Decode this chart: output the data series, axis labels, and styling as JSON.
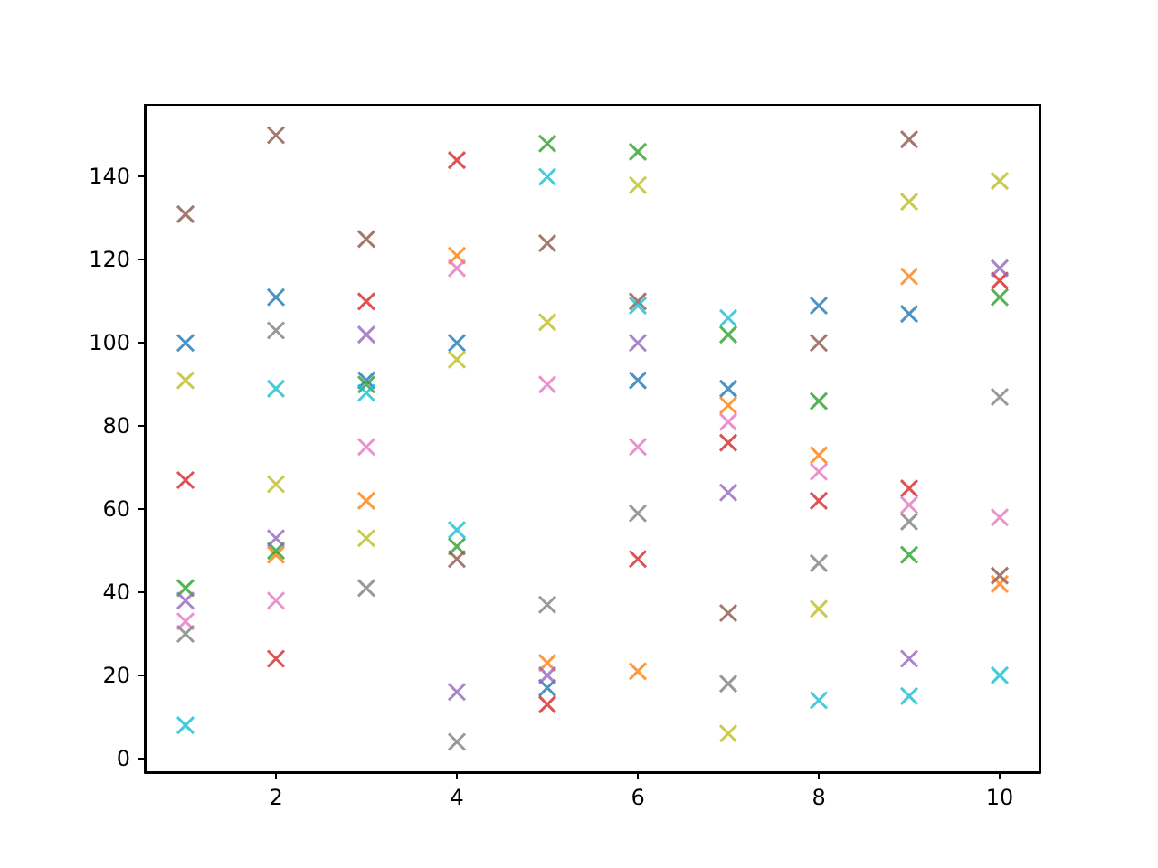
{
  "chart_data": {
    "type": "scatter",
    "x": [
      1,
      2,
      3,
      4,
      5,
      6,
      7,
      8,
      9,
      10
    ],
    "marker": "cross",
    "grid": false,
    "xlim": [
      0.55,
      10.45
    ],
    "xticks": [
      2,
      4,
      6,
      8,
      10
    ],
    "ylim": [
      -3.3,
      157.3
    ],
    "yticks": [
      0,
      20,
      40,
      60,
      80,
      100,
      120,
      140
    ],
    "series": [
      {
        "color": "#1f77b4",
        "values": [
          100,
          111,
          91,
          100,
          17,
          91,
          89,
          109,
          107,
          null
        ]
      },
      {
        "color": "#ff7f0e",
        "values": [
          null,
          49,
          62,
          121,
          23,
          21,
          85,
          73,
          116,
          42
        ]
      },
      {
        "color": "#2ca02c",
        "values": [
          41,
          50,
          90,
          51,
          148,
          146,
          102,
          86,
          49,
          111
        ]
      },
      {
        "color": "#d62728",
        "values": [
          67,
          24,
          110,
          144,
          13,
          48,
          76,
          62,
          65,
          115
        ]
      },
      {
        "color": "#9467bd",
        "values": [
          38,
          53,
          102,
          16,
          20,
          100,
          64,
          null,
          24,
          118
        ]
      },
      {
        "color": "#8c564b",
        "values": [
          131,
          150,
          125,
          48,
          124,
          110,
          35,
          100,
          149,
          44
        ]
      },
      {
        "color": "#e377c2",
        "values": [
          33,
          38,
          75,
          118,
          90,
          75,
          81,
          69,
          61,
          58
        ]
      },
      {
        "color": "#7f7f7f",
        "values": [
          30,
          103,
          41,
          4,
          37,
          59,
          18,
          47,
          57,
          87
        ]
      },
      {
        "color": "#bcbd22",
        "values": [
          91,
          66,
          53,
          96,
          105,
          138,
          6,
          36,
          134,
          139
        ]
      },
      {
        "color": "#17becf",
        "values": [
          8,
          89,
          88,
          55,
          140,
          109,
          106,
          14,
          15,
          20
        ]
      }
    ]
  }
}
